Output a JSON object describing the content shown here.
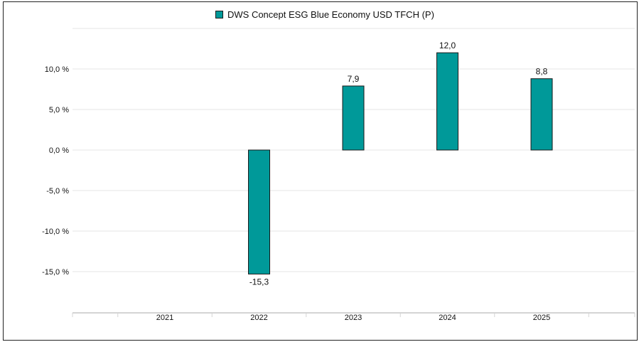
{
  "chart_data": {
    "type": "bar",
    "categories": [
      "2021",
      "2022",
      "2023",
      "2024",
      "2025"
    ],
    "series": [
      {
        "name": "DWS Concept ESG Blue Economy USD TFCH (P)",
        "values": [
          null,
          -15.3,
          7.9,
          12.0,
          8.8
        ],
        "data_labels": [
          "",
          "-15,3",
          "7,9",
          "12,0",
          "8,8"
        ],
        "color": "#009999"
      }
    ],
    "y_ticks": [
      {
        "value": 10,
        "label": "10,0 %"
      },
      {
        "value": 5,
        "label": "5,0 %"
      },
      {
        "value": 0,
        "label": "0,0 %"
      },
      {
        "value": -5,
        "label": "-5,0 %"
      },
      {
        "value": -10,
        "label": "-10,0 %"
      },
      {
        "value": -15,
        "label": "-15,0 %"
      }
    ],
    "ylim": [
      -20,
      15
    ],
    "grid": true,
    "legend_position": "top-center",
    "title": "",
    "xlabel": "",
    "ylabel": ""
  }
}
